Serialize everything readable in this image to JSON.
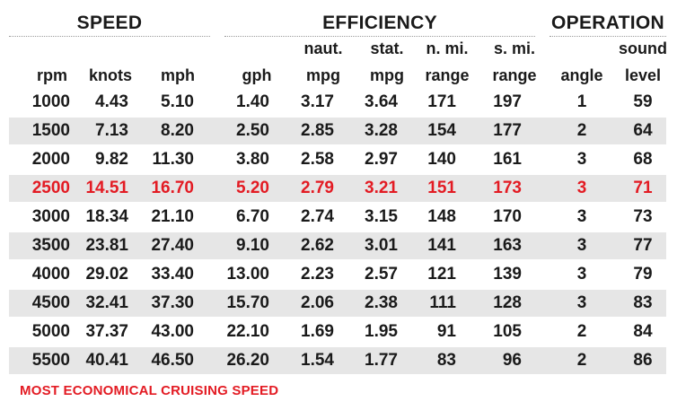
{
  "groups": {
    "speed": "SPEED",
    "efficiency": "EFFICIENCY",
    "operation": "OPERATION"
  },
  "columns": {
    "rpm": [
      "",
      "rpm"
    ],
    "knots": [
      "",
      "knots"
    ],
    "mph": [
      "",
      "mph"
    ],
    "gph": [
      "",
      "gph"
    ],
    "naut_mpg": [
      "naut.",
      "mpg"
    ],
    "stat_mpg": [
      "stat.",
      "mpg"
    ],
    "n_range": [
      "n. mi.",
      "range"
    ],
    "s_range": [
      "s. mi.",
      "range"
    ],
    "angle": [
      "",
      "angle"
    ],
    "sound": [
      "sound",
      "level"
    ]
  },
  "rows": [
    [
      "1000",
      "4.43",
      "5.10",
      "1.40",
      "3.17",
      "3.64",
      "171",
      "197",
      "1",
      "59"
    ],
    [
      "1500",
      "7.13",
      "8.20",
      "2.50",
      "2.85",
      "3.28",
      "154",
      "177",
      "2",
      "64"
    ],
    [
      "2000",
      "9.82",
      "11.30",
      "3.80",
      "2.58",
      "2.97",
      "140",
      "161",
      "3",
      "68"
    ],
    [
      "2500",
      "14.51",
      "16.70",
      "5.20",
      "2.79",
      "3.21",
      "151",
      "173",
      "3",
      "71"
    ],
    [
      "3000",
      "18.34",
      "21.10",
      "6.70",
      "2.74",
      "3.15",
      "148",
      "170",
      "3",
      "73"
    ],
    [
      "3500",
      "23.81",
      "27.40",
      "9.10",
      "2.62",
      "3.01",
      "141",
      "163",
      "3",
      "77"
    ],
    [
      "4000",
      "29.02",
      "33.40",
      "13.00",
      "2.23",
      "2.57",
      "121",
      "139",
      "3",
      "79"
    ],
    [
      "4500",
      "32.41",
      "37.30",
      "15.70",
      "2.06",
      "2.38",
      "111",
      "128",
      "3",
      "83"
    ],
    [
      "5000",
      "37.37",
      "43.00",
      "22.10",
      "1.69",
      "1.95",
      "91",
      "105",
      "2",
      "84"
    ],
    [
      "5500",
      "40.41",
      "46.50",
      "26.20",
      "1.54",
      "1.77",
      "83",
      "96",
      "2",
      "86"
    ]
  ],
  "highlight_row": 3,
  "footnote": "MOST ECONOMICAL CRUISING SPEED",
  "colors": {
    "highlight": "#e31b23",
    "shade": "#e6e6e6",
    "text": "#1a1a1a"
  }
}
